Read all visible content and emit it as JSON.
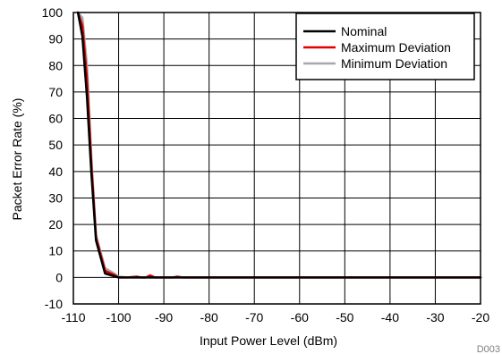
{
  "chart_data": {
    "type": "line",
    "title": "",
    "xlabel": "Input Power Level (dBm)",
    "ylabel": "Packet Error Rate (%)",
    "xlim": [
      -110,
      -20
    ],
    "ylim": [
      -10,
      100
    ],
    "x_ticks": [
      -110,
      -100,
      -90,
      -80,
      -70,
      -60,
      -50,
      -40,
      -30,
      -20
    ],
    "y_ticks": [
      -10,
      0,
      10,
      20,
      30,
      40,
      50,
      60,
      70,
      80,
      90,
      100
    ],
    "grid": true,
    "legend_position": "top-right",
    "figure_id": "D003",
    "series": [
      {
        "name": "Nominal",
        "color": "#000000",
        "x": [
          -109,
          -108,
          -107,
          -106,
          -105,
          -103,
          -101,
          -100,
          -97,
          -90,
          -80,
          -70,
          -60,
          -50,
          -40,
          -30,
          -20
        ],
        "y": [
          100,
          91,
          68,
          39,
          14,
          1.5,
          0.5,
          0,
          0,
          0,
          0,
          0,
          0,
          0,
          0,
          0,
          0
        ]
      },
      {
        "name": "Maximum Deviation",
        "color": "#e00000",
        "x": [
          -109,
          -108,
          -107,
          -106,
          -105,
          -103,
          -101,
          -100,
          -98,
          -96,
          -95,
          -94,
          -93,
          -92,
          -90,
          -88,
          -87,
          -86,
          -80,
          -70,
          -60,
          -50,
          -40,
          -30,
          -20
        ],
        "y": [
          100,
          95,
          75,
          42,
          15,
          2.5,
          1,
          0,
          0,
          0.3,
          0,
          0,
          0.8,
          0,
          0,
          0,
          0.3,
          0,
          0,
          0,
          0,
          0,
          0,
          0,
          0
        ]
      },
      {
        "name": "Minimum Deviation",
        "color": "#a8a8a8",
        "x": [
          -109,
          -108,
          -107,
          -106,
          -105,
          -103,
          -101,
          -100,
          -98,
          -90,
          -80,
          -70,
          -60,
          -50,
          -40,
          -30,
          -20
        ],
        "y": [
          100,
          98,
          80,
          45,
          16,
          3.5,
          1.5,
          0.3,
          0,
          0,
          0,
          0,
          0,
          0,
          0,
          0,
          0
        ]
      }
    ]
  }
}
